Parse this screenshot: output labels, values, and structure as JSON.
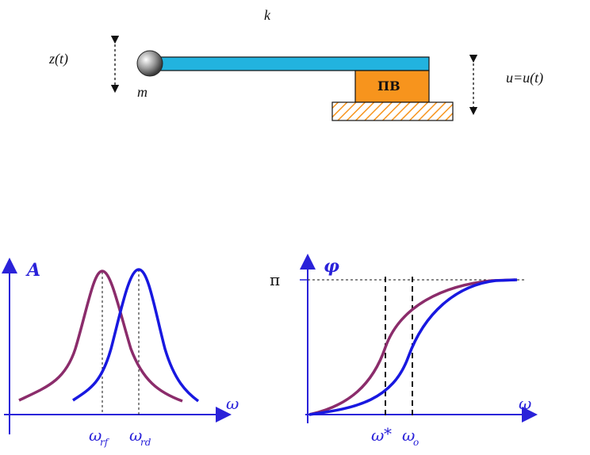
{
  "mechanism": {
    "k_label": "k",
    "z_label": "z(t)",
    "m_label": "m",
    "u_label": "u=u(t)",
    "actuator_label": "ПВ"
  },
  "chart_data": [
    {
      "type": "line",
      "title": "",
      "ylabel": "A",
      "xlabel": "ω",
      "tick_labels": [
        "ωrf",
        "ωrd"
      ],
      "series": [
        {
          "name": "",
          "color": "#8b2c6b"
        },
        {
          "name": "",
          "color": "#1818e0"
        }
      ]
    },
    {
      "type": "line",
      "title": "",
      "ylabel": "φ",
      "xlabel": "ω",
      "y_tick_label": "π",
      "tick_labels": [
        "ω*",
        "ωo"
      ],
      "series": [
        {
          "name": "",
          "color": "#8b2c6b"
        },
        {
          "name": "",
          "color": "#1818e0"
        }
      ]
    }
  ],
  "colors": {
    "beam": "#22b3df",
    "actuator": "#f7941d",
    "hatch": "#f7941d",
    "axis": "#2a22d9",
    "curve_purple": "#8b2c6b",
    "curve_blue": "#1818e0"
  }
}
